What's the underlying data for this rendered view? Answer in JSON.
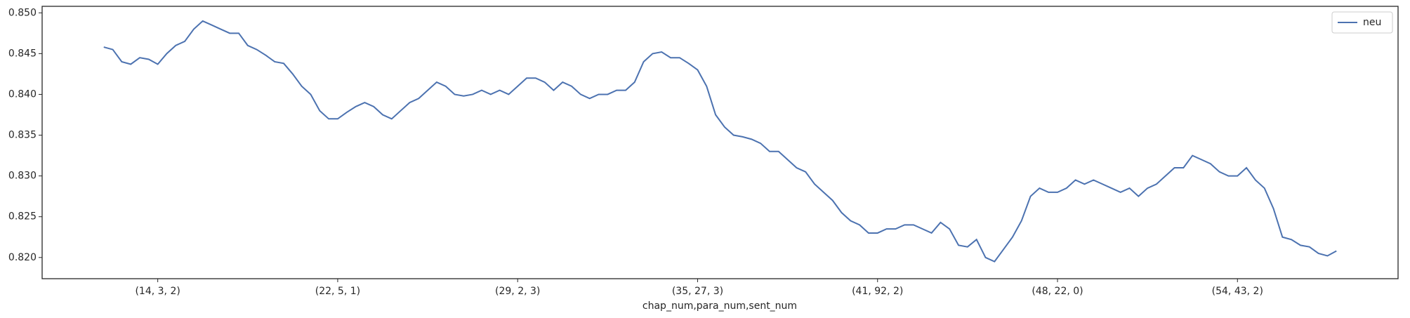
{
  "chart_data": {
    "type": "line",
    "xlabel": "chap_num,para_num,sent_num",
    "categories": [
      null,
      null,
      null,
      null,
      null,
      null,
      "(14, 3, 2)",
      null,
      null,
      null,
      null,
      null,
      null,
      null,
      null,
      null,
      null,
      null,
      null,
      null,
      null,
      null,
      null,
      null,
      null,
      null,
      "(22, 5, 1)",
      null,
      null,
      null,
      null,
      null,
      null,
      null,
      null,
      null,
      null,
      null,
      null,
      null,
      null,
      null,
      null,
      null,
      null,
      null,
      "(29, 2, 3)",
      null,
      null,
      null,
      null,
      null,
      null,
      null,
      null,
      null,
      null,
      null,
      null,
      null,
      null,
      null,
      null,
      null,
      null,
      null,
      "(35, 27, 3)",
      null,
      null,
      null,
      null,
      null,
      null,
      null,
      null,
      null,
      null,
      null,
      null,
      null,
      null,
      null,
      null,
      null,
      null,
      null,
      "(41, 92, 2)",
      null,
      null,
      null,
      null,
      null,
      null,
      null,
      null,
      null,
      null,
      null,
      null,
      null,
      null,
      null,
      null,
      null,
      null,
      null,
      "(48, 22, 0)",
      null,
      null,
      null,
      null,
      null,
      null,
      null,
      null,
      null,
      null,
      null,
      null,
      null,
      null,
      null,
      null,
      null,
      null,
      null,
      "(54, 43, 2)",
      null,
      null,
      null,
      null,
      null,
      null,
      null,
      null,
      null,
      null,
      null
    ],
    "series": [
      {
        "name": "neu",
        "color": "#4c72b0",
        "values": [
          0.8458,
          0.8455,
          0.844,
          0.8437,
          0.8445,
          0.8443,
          0.8437,
          0.845,
          0.846,
          0.8465,
          0.848,
          0.849,
          0.8485,
          0.848,
          0.8475,
          0.8475,
          0.846,
          0.8455,
          0.8448,
          0.844,
          0.8438,
          0.8425,
          0.841,
          0.84,
          0.838,
          0.837,
          0.837,
          0.8378,
          0.8385,
          0.839,
          0.8385,
          0.8375,
          0.837,
          0.838,
          0.839,
          0.8395,
          0.8405,
          0.8415,
          0.841,
          0.84,
          0.8398,
          0.84,
          0.8405,
          0.84,
          0.8405,
          0.84,
          0.841,
          0.842,
          0.842,
          0.8415,
          0.8405,
          0.8415,
          0.841,
          0.84,
          0.8395,
          0.84,
          0.84,
          0.8405,
          0.8405,
          0.8415,
          0.844,
          0.845,
          0.8452,
          0.8445,
          0.8445,
          0.8438,
          0.843,
          0.841,
          0.8375,
          0.836,
          0.835,
          0.8348,
          0.8345,
          0.834,
          0.833,
          0.833,
          0.832,
          0.831,
          0.8305,
          0.829,
          0.828,
          0.827,
          0.8255,
          0.8245,
          0.824,
          0.823,
          0.823,
          0.8235,
          0.8235,
          0.824,
          0.824,
          0.8235,
          0.823,
          0.8243,
          0.8235,
          0.8215,
          0.8213,
          0.8222,
          0.82,
          0.8195,
          0.821,
          0.8225,
          0.8245,
          0.8275,
          0.8285,
          0.828,
          0.828,
          0.8285,
          0.8295,
          0.829,
          0.8295,
          0.829,
          0.8285,
          0.828,
          0.8285,
          0.8275,
          0.8285,
          0.829,
          0.83,
          0.831,
          0.831,
          0.8325,
          0.832,
          0.8315,
          0.8305,
          0.83,
          0.83,
          0.831,
          0.8295,
          0.8285,
          0.826,
          0.8225,
          0.8222,
          0.8215,
          0.8213,
          0.8205,
          0.8202,
          0.8208
        ]
      }
    ],
    "ylim": [
      0.8174,
      0.8508
    ],
    "yticks": [
      {
        "value": 0.82,
        "label": "0.820"
      },
      {
        "value": 0.825,
        "label": "0.825"
      },
      {
        "value": 0.83,
        "label": "0.830"
      },
      {
        "value": 0.835,
        "label": "0.835"
      },
      {
        "value": 0.84,
        "label": "0.840"
      },
      {
        "value": 0.845,
        "label": "0.845"
      },
      {
        "value": 0.85,
        "label": "0.850"
      }
    ],
    "grid": false,
    "legend": "upper right"
  }
}
